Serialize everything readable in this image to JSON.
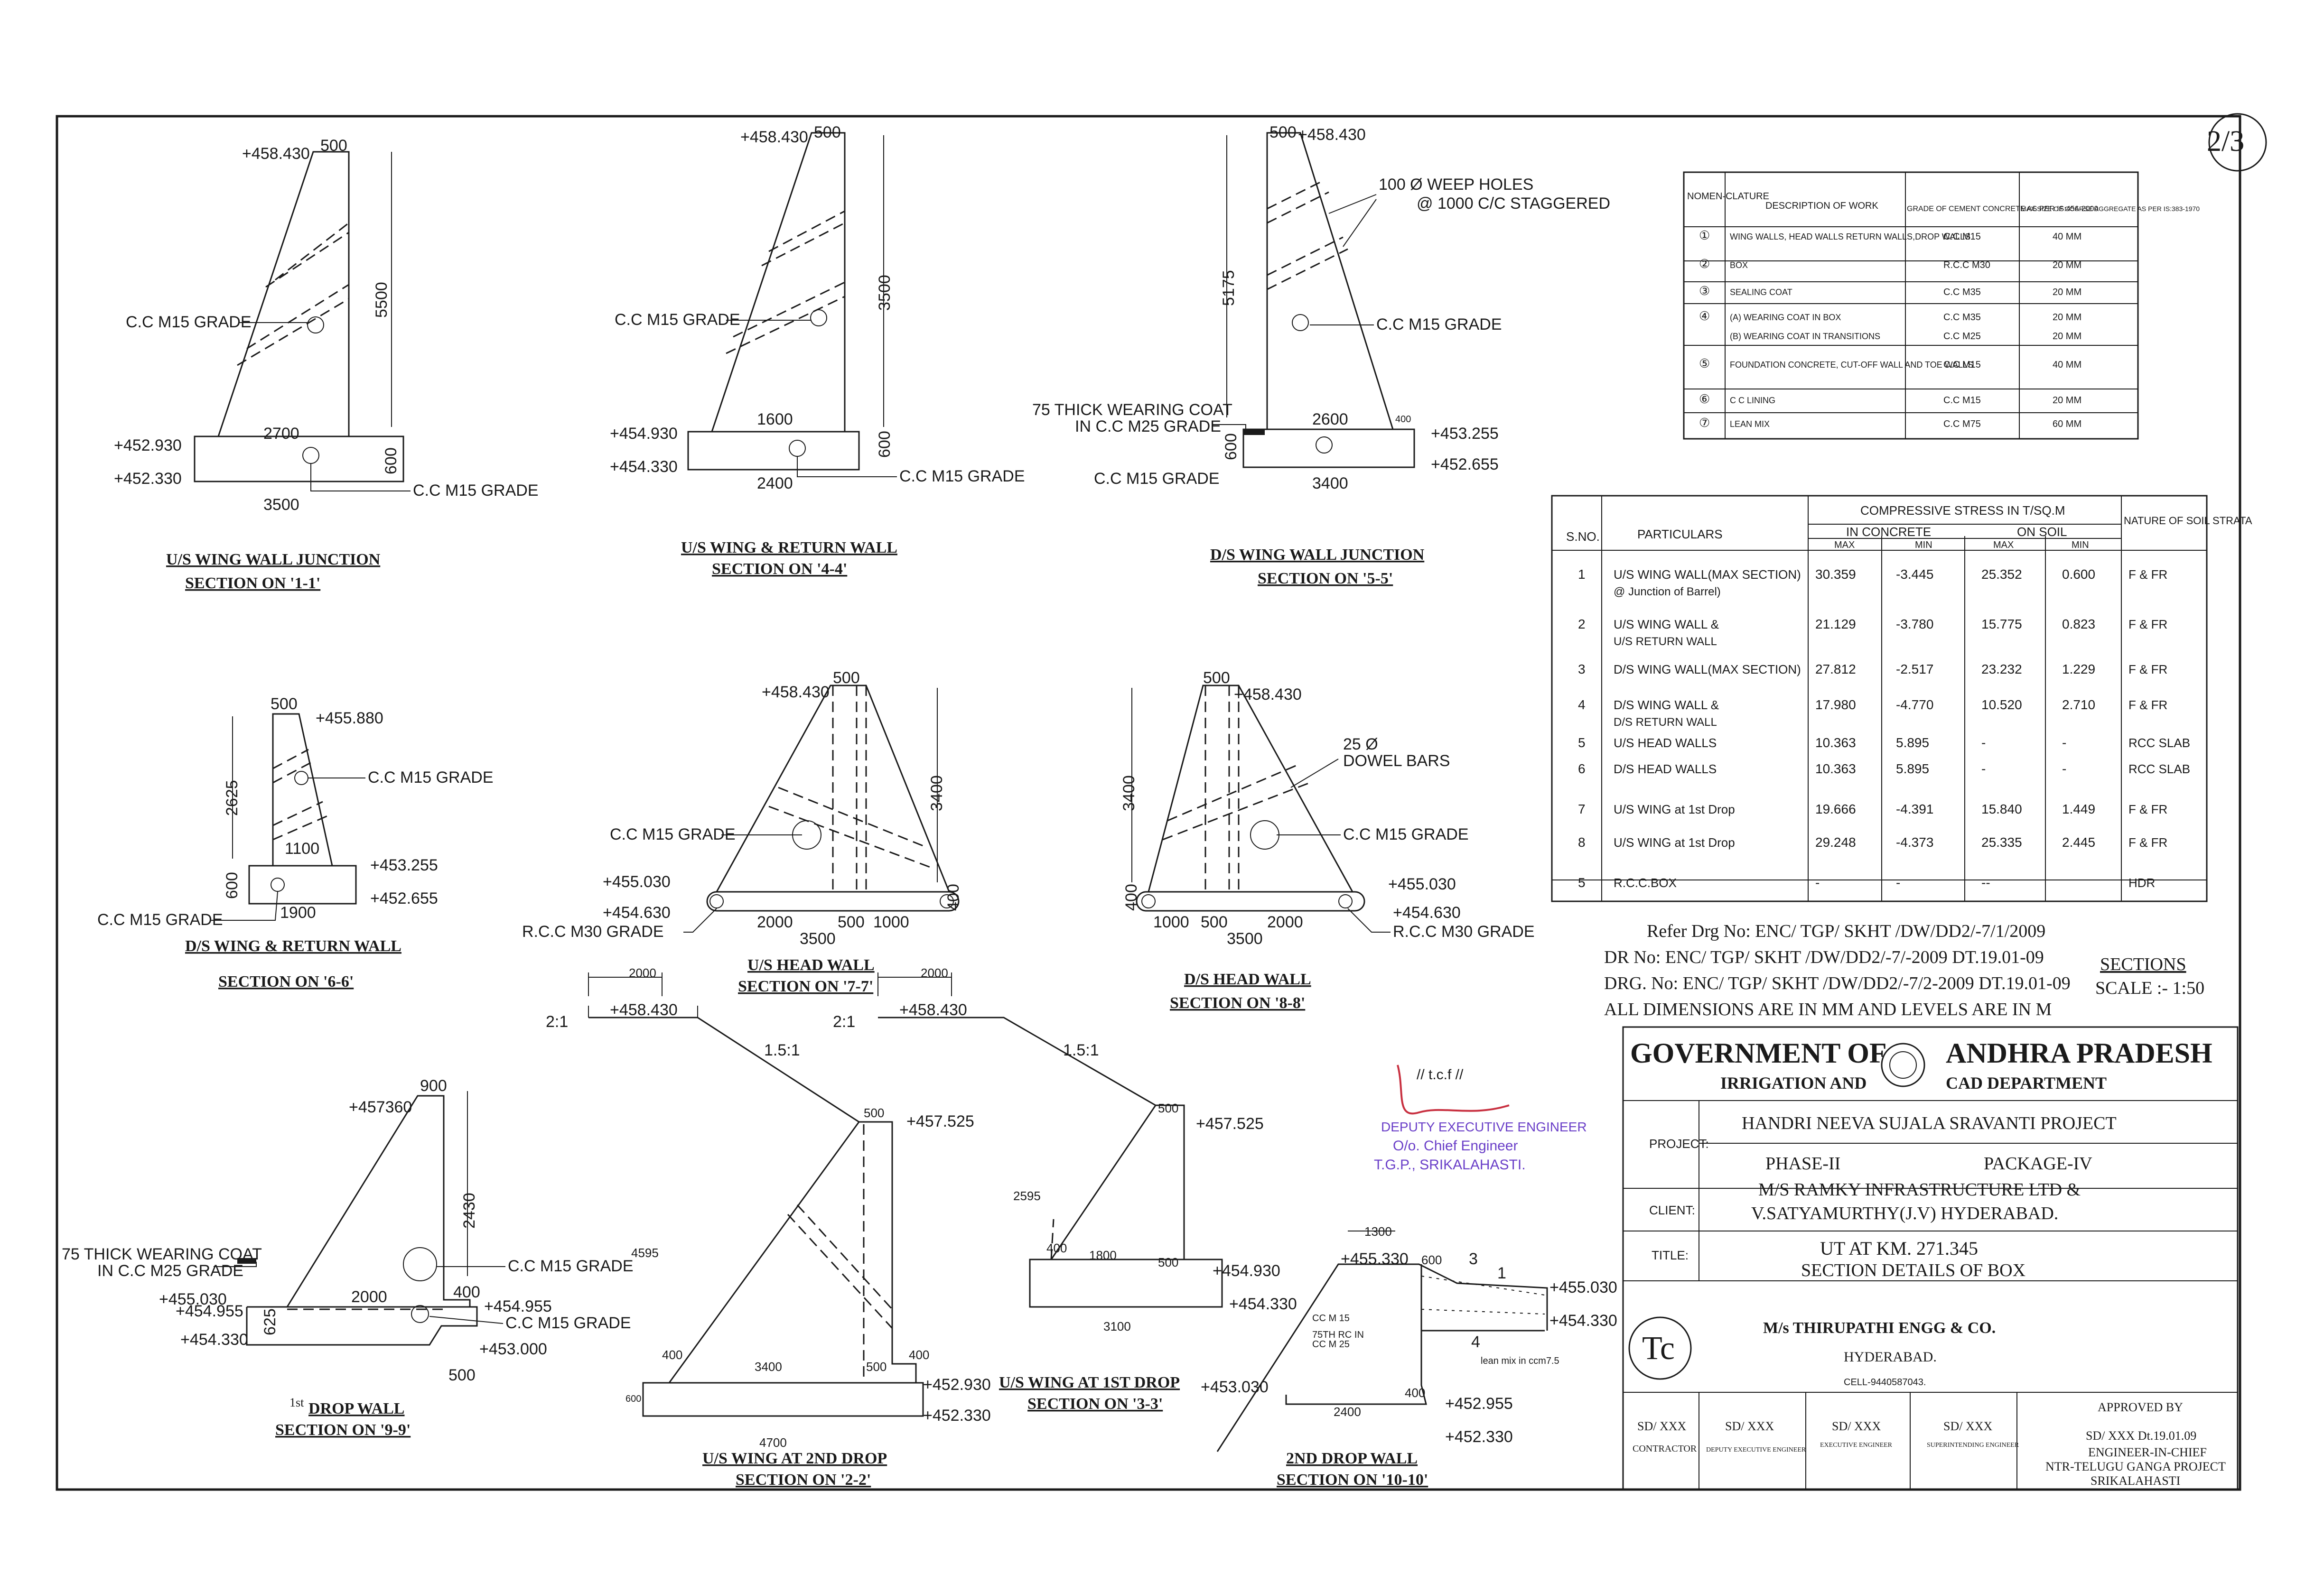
{
  "sheet_no": "2/3",
  "sections": {
    "s11": {
      "top_level": "+458.430",
      "top_width": "500",
      "height": "5500",
      "grade_wall": "C.C M15 GRADE",
      "base_width": "2700",
      "level_top_base": "+452.930",
      "level_bot_base": "+452.330",
      "footing": "3500",
      "footing_depth": "600",
      "grade_footing": "C.C M15 GRADE",
      "title": "U/S WING WALL JUNCTION",
      "subtitle": "SECTION ON '1-1'"
    },
    "s44": {
      "top_level": "+458.430",
      "top_width": "500",
      "height": "3500",
      "grade_wall": "C.C M15 GRADE",
      "base_width": "1600",
      "level_top_base": "+454.930",
      "level_bot_base": "+454.330",
      "footing": "2400",
      "footing_depth": "600",
      "grade_footing": "C.C M15 GRADE",
      "title": "U/S WING & RETURN WALL",
      "subtitle": "SECTION ON '4-4'"
    },
    "s55": {
      "top_level": "+458.430",
      "top_width": "500",
      "height": "5175",
      "weep_line1": "100 Ø WEEP HOLES",
      "weep_line2": "@ 1000 C/C STAGGERED",
      "grade_wall": "C.C M15 GRADE",
      "coat_line1": "75 THICK WEARING COAT",
      "coat_line2": "IN C.C M25 GRADE",
      "base_width": "2600",
      "small_dim": "400",
      "level_top_base": "+453.255",
      "level_bot_base": "+452.655",
      "footing": "3400",
      "footing_depth": "600",
      "grade_footing": "C.C M15 GRADE",
      "title": "D/S WING WALL JUNCTION",
      "subtitle": "SECTION ON '5-5'"
    },
    "s66": {
      "top_width": "500",
      "top_level": "+455.880",
      "height": "2625",
      "grade_wall": "C.C M15 GRADE",
      "base_width": "1100",
      "level_top_base": "+453.255",
      "level_bot_base": "+452.655",
      "footing": "1900",
      "footing_depth": "600",
      "grade_footing": "C.C M15 GRADE",
      "title": "D/S WING & RETURN WALL",
      "subtitle": "SECTION ON '6-6'"
    },
    "s77": {
      "top_level": "+458.430",
      "top_width": "500",
      "height": "3400",
      "grade": "C.C M15 GRADE",
      "level_a": "+455.030",
      "level_b": "+454.630",
      "rcc": "R.C.C M30 GRADE",
      "d1": "2000",
      "d2": "500",
      "d3": "1000",
      "total": "3500",
      "depth": "400",
      "title": "U/S HEAD WALL",
      "subtitle": "SECTION ON '7-7'"
    },
    "s88": {
      "top_width": "500",
      "top_level": "+458.430",
      "height": "3400",
      "bars_line1": "25 Ø",
      "bars_line2": "DOWEL BARS",
      "grade": "C.C M15 GRADE",
      "level_a": "+455.030",
      "level_b": "+454.630",
      "rcc": "R.C.C M30 GRADE",
      "depth": "400",
      "d1": "1000",
      "d2": "500",
      "d3": "2000",
      "total": "3500",
      "title": "D/S HEAD WALL",
      "subtitle": "SECTION ON '8-8'"
    },
    "s99": {
      "top_width": "900",
      "top_level": "+457360",
      "height": "2430",
      "coat_line1": "75 THICK WEARING COAT",
      "coat_line2": "IN C.C M25 GRADE",
      "grade1": "C.C M15 GRADE",
      "grade2": "C.C M15 GRADE",
      "base": "2000",
      "step": "400",
      "dim625": "625",
      "l1": "+455.030",
      "l2": "+454.955",
      "l3": "+454.955",
      "l4": "+454.330",
      "l5": "+453.000",
      "dim500": "500",
      "mark": "1st",
      "title": "DROP WALL",
      "subtitle": "SECTION ON '9-9'"
    },
    "s22": {
      "slope_a": "2:1",
      "berm": "2000",
      "top_level": "+458.430",
      "slope_b": "1.5:1",
      "top_width": "500",
      "level_top": "+457.525",
      "height": "4595",
      "step_a": "400",
      "base": "3400",
      "step_b": "500",
      "step_c": "400",
      "level_a": "+452.930",
      "level_b": "+452.330",
      "total": "4700",
      "footing_depth": "600",
      "title": "U/S WING AT 2ND DROP",
      "subtitle": "SECTION ON '2-2'"
    },
    "s33": {
      "slope_a": "2:1",
      "berm": "2000",
      "top_level": "+458.430",
      "slope_b": "1.5:1",
      "top_width": "500",
      "level_top": "+457.525",
      "height": "2595",
      "step_a": "400",
      "base": "1800",
      "step_b": "500",
      "level_a": "+454.930",
      "level_b": "+454.330",
      "total": "3100",
      "title": "U/S WING AT 1ST DROP",
      "subtitle": "SECTION ON '3-3'"
    },
    "s1010": {
      "top": "1300",
      "top_level": "+455.330",
      "top_width": "600",
      "mark3": "3",
      "mark1": "1",
      "level_r1": "+455.030",
      "level_r2": "+454.330",
      "note1": "CC M 15",
      "note2": "75TH RC IN",
      "note3": "CC M 25",
      "mark4": "4",
      "lean": "lean mix in ccm7.5",
      "level_l": "+453.030",
      "step": "400",
      "base": "2400",
      "level_b1": "+452.955",
      "level_b2": "+452.330",
      "title": "2ND DROP WALL",
      "subtitle": "SECTION ON '10-10'"
    }
  },
  "grade_table": {
    "headers": [
      "NOMEN-CLATURE",
      "DESCRIPTION OF WORK",
      "GRADE OF CEMENT CONCRETE AS PER IS:456-2000",
      "MAX.SIZE OF COARSE AGGREGATE AS PER IS:383-1970"
    ],
    "rows": [
      {
        "no": "①",
        "desc": "WING WALLS, HEAD WALLS RETURN WALLS,DROP WALLS",
        "grade": "C.C M15",
        "size": "40 MM"
      },
      {
        "no": "②",
        "desc": "BOX",
        "grade": "R.C.C M30",
        "size": "20 MM"
      },
      {
        "no": "③",
        "desc": "SEALING COAT",
        "grade": "C.C M35",
        "size": "20 MM"
      },
      {
        "no": "④",
        "desc": "(A) WEARING COAT IN BOX",
        "grade": "C.C M35",
        "size": "20 MM"
      },
      {
        "no": "",
        "desc": "(B) WEARING COAT IN TRANSITIONS",
        "grade": "C.C M25",
        "size": "20 MM"
      },
      {
        "no": "⑤",
        "desc": "FOUNDATION CONCRETE, CUT-OFF WALL AND TOE WALLS",
        "grade": "C.C M15",
        "size": "40 MM"
      },
      {
        "no": "⑥",
        "desc": "C C LINING",
        "grade": "C.C M15",
        "size": "20 MM"
      },
      {
        "no": "⑦",
        "desc": "LEAN MIX",
        "grade": "C.C M75",
        "size": "60 MM"
      }
    ]
  },
  "stress_table": {
    "h_sno": "S.NO.",
    "h_part": "PARTICULARS",
    "h_cs": "COMPRESSIVE STRESS IN T/SQ.M",
    "h_conc": "IN CONCRETE",
    "h_soil": "ON SOIL",
    "h_max": "MAX",
    "h_min": "MIN",
    "h_max2": "MAX",
    "h_min2": "MIN",
    "h_nat": "NATURE OF SOIL STRATA",
    "rows": [
      {
        "sno": "1",
        "part": "U/S WING WALL(MAX SECTION)",
        "part2": "@ Junction of Barrel)",
        "cmax": "30.359",
        "cmin": "-3.445",
        "smax": "25.352",
        "smin": "0.600",
        "nat": "F & FR"
      },
      {
        "sno": "2",
        "part": "U/S WING WALL &",
        "part2": "U/S RETURN WALL",
        "cmax": "21.129",
        "cmin": "-3.780",
        "smax": "15.775",
        "smin": "0.823",
        "nat": "F & FR"
      },
      {
        "sno": "3",
        "part": "D/S WING WALL(MAX SECTION)",
        "part2": "",
        "cmax": "27.812",
        "cmin": "-2.517",
        "smax": "23.232",
        "smin": "1.229",
        "nat": "F & FR"
      },
      {
        "sno": "4",
        "part": "D/S WING WALL &",
        "part2": "D/S RETURN WALL",
        "cmax": "17.980",
        "cmin": "-4.770",
        "smax": "10.520",
        "smin": "2.710",
        "nat": "F & FR"
      },
      {
        "sno": "5",
        "part": "U/S HEAD WALLS",
        "part2": "",
        "cmax": "10.363",
        "cmin": "5.895",
        "smax": "-",
        "smin": "-",
        "nat": "RCC SLAB"
      },
      {
        "sno": "6",
        "part": "D/S HEAD WALLS",
        "part2": "",
        "cmax": "10.363",
        "cmin": "5.895",
        "smax": "-",
        "smin": "-",
        "nat": "RCC SLAB"
      },
      {
        "sno": "7",
        "part": "U/S WING at 1st Drop",
        "part2": "",
        "cmax": "19.666",
        "cmin": "-4.391",
        "smax": "15.840",
        "smin": "1.449",
        "nat": "F & FR"
      },
      {
        "sno": "8",
        "part": "U/S WING at 1st Drop",
        "part2": "",
        "cmax": "29.248",
        "cmin": "-4.373",
        "smax": "25.335",
        "smin": "2.445",
        "nat": "F & FR"
      },
      {
        "sno": "5",
        "part": "R.C.C.BOX",
        "part2": "",
        "cmax": "-",
        "cmin": "-",
        "smax": "--",
        "smin": "",
        "nat": "HDR"
      }
    ]
  },
  "notes": {
    "ref1": "Refer Drg No: ENC/ TGP/ SKHT /DW/DD2/-7/1/2009",
    "ref2": "DR No: ENC/ TGP/ SKHT /DW/DD2/-7/-2009 DT.19.01-09",
    "ref3": "DRG. No: ENC/ TGP/ SKHT /DW/DD2/-7/2-2009 DT.19.01-09",
    "ref4": "ALL DIMENSIONS ARE IN MM AND LEVELS ARE IN M",
    "sections": "SECTIONS",
    "scale": "SCALE :- 1:50"
  },
  "title_block": {
    "gov1": "GOVERNMENT OF",
    "gov2": "ANDHRA PRADESH",
    "dept1": "IRRIGATION AND",
    "dept2": "CAD DEPARTMENT",
    "project_label": "PROJECT:",
    "project1": "HANDRI NEEVA SUJALA SRAVANTI PROJECT",
    "phase": "PHASE-II",
    "package": "PACKAGE-IV",
    "client_label": "CLIENT:",
    "client1": "M/S RAMKY INFRASTRUCTURE LTD &",
    "client2": "V.SATYAMURTHY(J.V) HYDERABAD.",
    "title_label": "TITLE:",
    "title1": "UT  AT KM. 271.345",
    "title2": "SECTION DETAILS OF BOX",
    "firm": "M/s THIRUPATHI ENGG & CO.",
    "city": "HYDERABAD.",
    "cell": "CELL-9440587043.",
    "sig1": "SD/ XXX",
    "sig1b": "CONTRACTOR",
    "sig2": "SD/ XXX",
    "sig2b": "DEPUTY EXECUTIVE ENGINEER",
    "sig3": "SD/ XXX",
    "sig3b": "EXECUTIVE ENGINEER",
    "sig4": "SD/ XXX",
    "sig4b": "SUPERINTENDING ENGINEER",
    "approved": "APPROVED BY",
    "app1": "SD/ XXX Dt.19.01.09",
    "app2": "ENGINEER-IN-CHIEF",
    "app3": "NTR-TELUGU GANGA PROJECT",
    "app4": "SRIKALAHASTI"
  },
  "stamp": {
    "tcf": "// t.c.f //",
    "line1": "DEPUTY EXECUTIVE ENGINEER",
    "line2": "O/o. Chief Engineer",
    "line3": "T.G.P., SRIKALAHASTI."
  }
}
